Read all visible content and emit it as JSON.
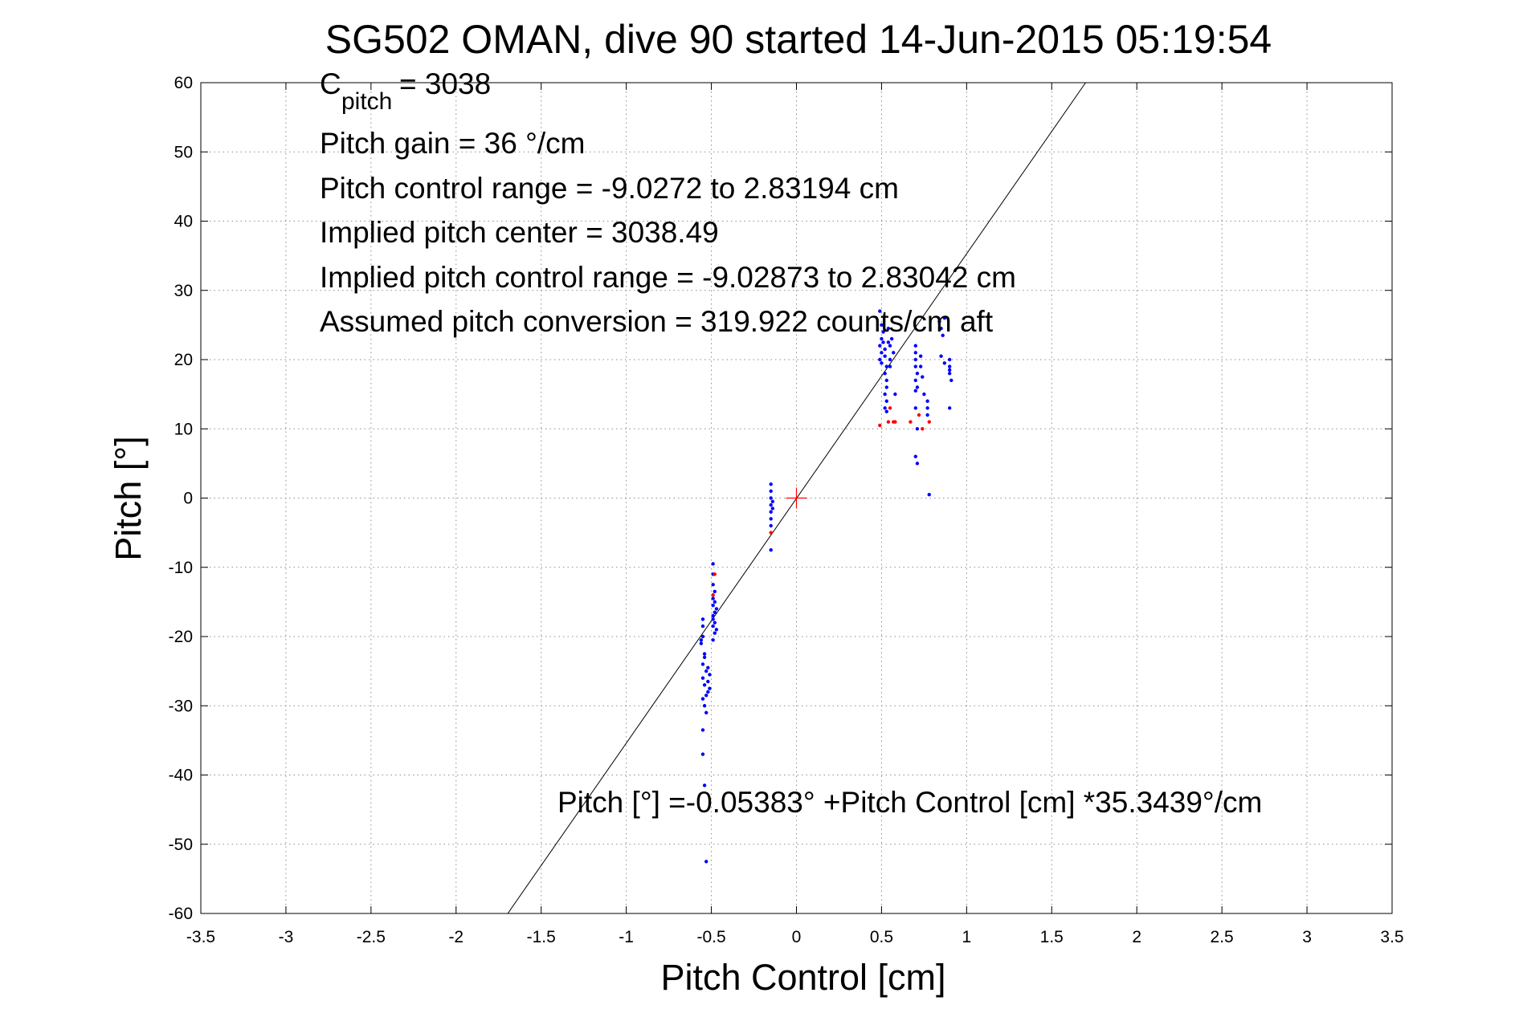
{
  "chart_data": {
    "type": "scatter",
    "title": "SG502 OMAN, dive 90 started 14-Jun-2015 05:19:54",
    "xlabel": "Pitch Control [cm]",
    "ylabel": "Pitch [°]",
    "xlim": [
      -3.5,
      3.5
    ],
    "ylim": [
      -60,
      60
    ],
    "x_ticks": [
      -3.5,
      -3,
      -2.5,
      -2,
      -1.5,
      -1,
      -0.5,
      0,
      0.5,
      1,
      1.5,
      2,
      2.5,
      3,
      3.5
    ],
    "x_tick_labels": [
      "-3.5",
      "-3",
      "-2.5",
      "-2",
      "-1.5",
      "-1",
      "-0.5",
      "0",
      "0.5",
      "1",
      "1.5",
      "2",
      "2.5",
      "3",
      "3.5"
    ],
    "y_ticks": [
      -60,
      -50,
      -40,
      -30,
      -20,
      -10,
      0,
      10,
      20,
      30,
      40,
      50,
      60
    ],
    "y_tick_labels": [
      "-60",
      "-50",
      "-40",
      "-30",
      "-20",
      "-10",
      "0",
      "10",
      "20",
      "30",
      "40",
      "50",
      "60"
    ],
    "grid": true,
    "annotations": {
      "cpitch_main": "C",
      "cpitch_sub": "pitch",
      "cpitch_value": " = 3038",
      "pitch_gain": "Pitch gain = 36 °/cm",
      "control_range": "Pitch control range = -9.0272 to 2.83194 cm",
      "implied_center": "Implied pitch center = 3038.49",
      "implied_range": "Implied pitch control range = -9.02873 to 2.83042 cm",
      "conversion": "Assumed pitch conversion = 319.922 counts/cm aft",
      "fit_equation": "Pitch [°] =-0.05383° +Pitch Control [cm] *35.3439°/cm"
    },
    "fit_line": {
      "intercept": -0.05383,
      "slope": 35.3439
    },
    "center_marker": {
      "x": 0,
      "y": 0,
      "color": "#ff0000"
    },
    "series": [
      {
        "color": "#0000ff",
        "marker": "dot",
        "points": [
          [
            -0.55,
            -17.5
          ],
          [
            -0.55,
            -18.5
          ],
          [
            -0.55,
            -20.0
          ],
          [
            -0.56,
            -21.0
          ],
          [
            -0.54,
            -22.5
          ],
          [
            -0.55,
            -24.0
          ],
          [
            -0.53,
            -25.0
          ],
          [
            -0.55,
            -26.0
          ],
          [
            -0.54,
            -27.0
          ],
          [
            -0.52,
            -26.5
          ],
          [
            -0.51,
            -27.5
          ],
          [
            -0.53,
            -28.5
          ],
          [
            -0.55,
            -29.0
          ],
          [
            -0.54,
            -30.0
          ],
          [
            -0.55,
            -33.5
          ],
          [
            -0.55,
            -37.0
          ],
          [
            -0.54,
            -41.5
          ],
          [
            -0.53,
            -52.5
          ],
          [
            -0.56,
            -20.5
          ],
          [
            -0.54,
            -23.0
          ],
          [
            -0.52,
            -24.5
          ],
          [
            -0.51,
            -25.5
          ],
          [
            -0.52,
            -28.0
          ],
          [
            -0.53,
            -31.0
          ],
          [
            -0.49,
            -9.5
          ],
          [
            -0.49,
            -11.0
          ],
          [
            -0.49,
            -12.5
          ],
          [
            -0.48,
            -13.5
          ],
          [
            -0.49,
            -14.5
          ],
          [
            -0.49,
            -15.5
          ],
          [
            -0.48,
            -16.5
          ],
          [
            -0.49,
            -17.5
          ],
          [
            -0.48,
            -18.0
          ],
          [
            -0.49,
            -18.5
          ],
          [
            -0.48,
            -19.5
          ],
          [
            -0.49,
            -20.5
          ],
          [
            -0.48,
            -15.0
          ],
          [
            -0.49,
            -17.0
          ],
          [
            -0.47,
            -19.0
          ],
          [
            -0.47,
            -16.0
          ],
          [
            -0.15,
            2.0
          ],
          [
            -0.15,
            1.0
          ],
          [
            -0.15,
            0.0
          ],
          [
            -0.14,
            -0.5
          ],
          [
            -0.15,
            -1.0
          ],
          [
            -0.15,
            -2.0
          ],
          [
            -0.15,
            -3.0
          ],
          [
            -0.15,
            -4.0
          ],
          [
            -0.14,
            -1.5
          ],
          [
            -0.15,
            -7.5
          ],
          [
            0.49,
            27.0
          ],
          [
            0.5,
            25.0
          ],
          [
            0.5,
            23.0
          ],
          [
            0.49,
            22.0
          ],
          [
            0.5,
            21.0
          ],
          [
            0.49,
            20.0
          ],
          [
            0.5,
            19.5
          ],
          [
            0.51,
            22.5
          ],
          [
            0.52,
            21.5
          ],
          [
            0.52,
            20.5
          ],
          [
            0.53,
            19.0
          ],
          [
            0.52,
            18.0
          ],
          [
            0.53,
            17.0
          ],
          [
            0.53,
            16.0
          ],
          [
            0.52,
            15.0
          ],
          [
            0.53,
            14.0
          ],
          [
            0.52,
            13.0
          ],
          [
            0.53,
            12.5
          ],
          [
            0.54,
            22.5
          ],
          [
            0.55,
            22.0
          ],
          [
            0.55,
            20.0
          ],
          [
            0.55,
            19.0
          ],
          [
            0.56,
            23.0
          ],
          [
            0.57,
            21.0
          ],
          [
            0.58,
            15.0
          ],
          [
            0.51,
            24.0
          ],
          [
            0.54,
            24.5
          ],
          [
            0.7,
            22.0
          ],
          [
            0.7,
            21.0
          ],
          [
            0.7,
            20.0
          ],
          [
            0.7,
            19.0
          ],
          [
            0.71,
            18.0
          ],
          [
            0.7,
            17.0
          ],
          [
            0.71,
            16.0
          ],
          [
            0.7,
            15.5
          ],
          [
            0.7,
            13.0
          ],
          [
            0.71,
            10.0
          ],
          [
            0.7,
            6.0
          ],
          [
            0.71,
            5.0
          ],
          [
            0.73,
            20.5
          ],
          [
            0.73,
            19.0
          ],
          [
            0.74,
            17.5
          ],
          [
            0.75,
            15.0
          ],
          [
            0.77,
            14.0
          ],
          [
            0.77,
            13.0
          ],
          [
            0.77,
            12.0
          ],
          [
            0.78,
            0.5
          ],
          [
            0.84,
            25.5
          ],
          [
            0.85,
            24.5
          ],
          [
            0.86,
            23.5
          ],
          [
            0.87,
            26.0
          ],
          [
            0.85,
            20.5
          ],
          [
            0.87,
            19.5
          ],
          [
            0.9,
            20.0
          ],
          [
            0.9,
            19.0
          ],
          [
            0.9,
            18.5
          ],
          [
            0.9,
            18.0
          ],
          [
            0.91,
            17.0
          ],
          [
            0.9,
            13.0
          ]
        ]
      },
      {
        "color": "#ff0000",
        "marker": "dot",
        "points": [
          [
            -0.48,
            -11.0
          ],
          [
            -0.49,
            -14.0
          ],
          [
            -0.15,
            -5.0
          ],
          [
            0.49,
            10.5
          ],
          [
            0.54,
            11.0
          ],
          [
            0.57,
            11.0
          ],
          [
            0.67,
            11.0
          ],
          [
            0.72,
            12.0
          ],
          [
            0.78,
            11.0
          ],
          [
            0.74,
            10.0
          ],
          [
            0.58,
            11.0
          ],
          [
            0.55,
            13.0
          ]
        ]
      }
    ]
  }
}
